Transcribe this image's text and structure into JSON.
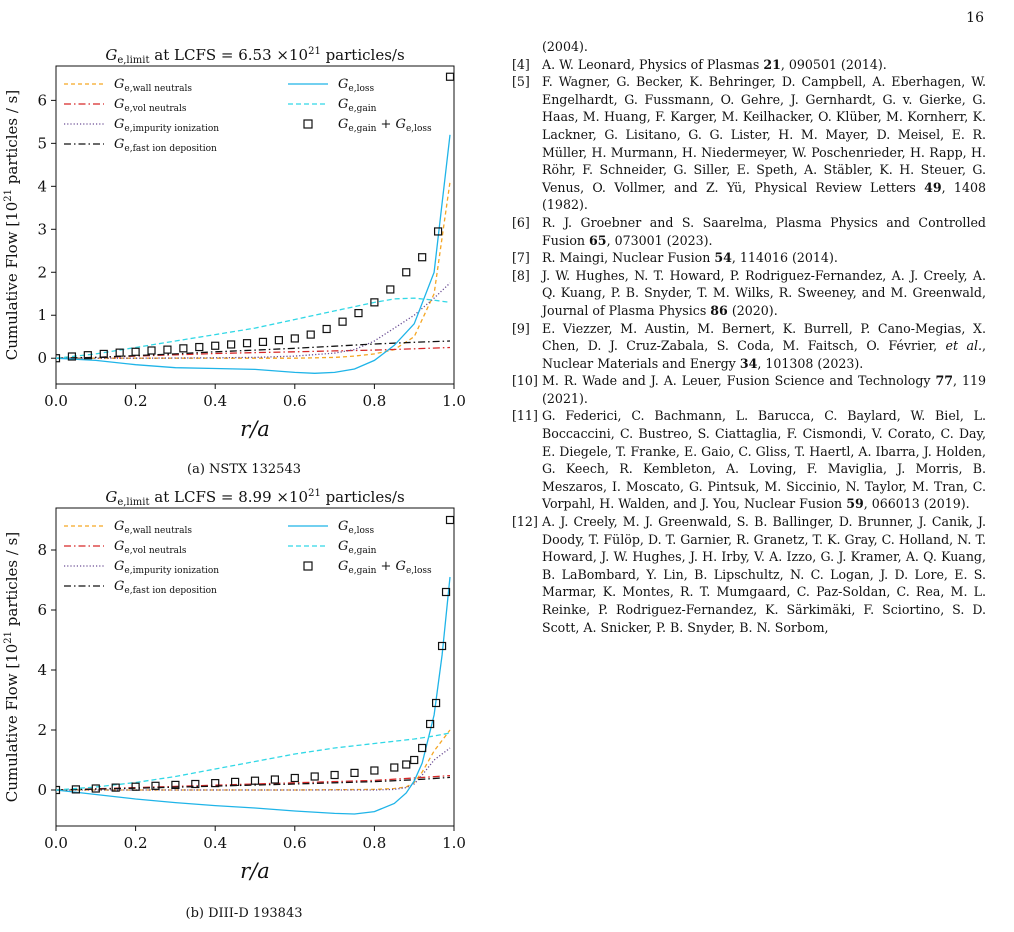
{
  "page": {
    "number": "16"
  },
  "figures": [
    {
      "id": "a",
      "title_prefix": "G",
      "title_sub": "e,limit",
      "title_mid": " at LCFS = 6.53 ×10",
      "title_sup": "21",
      "title_suffix": " particles/s",
      "caption": "(a) NSTX 132543",
      "xlabel": "r/a",
      "ylabel_main": "Cumulative Flow [10",
      "ylabel_sup": "21",
      "ylabel_end": " particles / s]",
      "legend": [
        {
          "sub": "e,wall neutrals",
          "color": "#f5a623",
          "dash": "4,3"
        },
        {
          "sub": "e,vol neutrals",
          "color": "#d62728",
          "dash": "7,3,1.5,3"
        },
        {
          "sub": "e,impurity ionization",
          "color": "#6a4c93",
          "dash": "1.2,2"
        },
        {
          "sub": "e,fast ion deposition",
          "color": "#111111",
          "dash": "7,3,1.5,3"
        },
        {
          "sub": "e,loss",
          "color": "#1fb4e8",
          "dash": ""
        },
        {
          "sub": "e,gain",
          "color": "#32d8e6",
          "dash": "5,3"
        },
        {
          "sub": "e,gain",
          "extra": " + G",
          "extra_sub": "e,loss",
          "color": "#111111",
          "marker": "square"
        }
      ]
    },
    {
      "id": "b",
      "title_prefix": "G",
      "title_sub": "e,limit",
      "title_mid": " at LCFS = 8.99 ×10",
      "title_sup": "21",
      "title_suffix": " particles/s",
      "caption": "(b) DIII-D 193843",
      "xlabel": "r/a",
      "ylabel_main": "Cumulative Flow [10",
      "ylabel_sup": "21",
      "ylabel_end": " particles / s]",
      "legend": [
        {
          "sub": "e,wall neutrals",
          "color": "#f5a623",
          "dash": "4,3"
        },
        {
          "sub": "e,vol neutrals",
          "color": "#d62728",
          "dash": "7,3,1.5,3"
        },
        {
          "sub": "e,impurity ionization",
          "color": "#6a4c93",
          "dash": "1.2,2"
        },
        {
          "sub": "e,fast ion deposition",
          "color": "#111111",
          "dash": "7,3,1.5,3"
        },
        {
          "sub": "e,loss",
          "color": "#1fb4e8",
          "dash": ""
        },
        {
          "sub": "e,gain",
          "color": "#32d8e6",
          "dash": "5,3"
        },
        {
          "sub": "e,gain",
          "extra": " + G",
          "extra_sub": "e,loss",
          "color": "#111111",
          "marker": "square"
        }
      ]
    }
  ],
  "chart_data": [
    {
      "type": "line",
      "xlim": [
        0,
        1.0
      ],
      "ylim": [
        -0.6,
        6.8
      ],
      "xticks": [
        "0.0",
        "0.2",
        "0.4",
        "0.6",
        "0.8",
        "1.0"
      ],
      "yticks": [
        "0",
        "1",
        "2",
        "3",
        "4",
        "5",
        "6"
      ],
      "legend_position": "top",
      "grid": false,
      "series": [
        {
          "x": [
            0,
            0.1,
            0.2,
            0.3,
            0.4,
            0.5,
            0.6,
            0.7,
            0.75,
            0.8,
            0.85,
            0.9,
            0.95,
            0.99
          ],
          "y": [
            0,
            0,
            0,
            0,
            0,
            0,
            0,
            0.02,
            0.05,
            0.1,
            0.2,
            0.5,
            1.5,
            4.1
          ]
        },
        {
          "x": [
            0,
            0.1,
            0.2,
            0.3,
            0.4,
            0.5,
            0.6,
            0.7,
            0.8,
            0.9,
            0.99
          ],
          "y": [
            0,
            0.02,
            0.05,
            0.08,
            0.11,
            0.13,
            0.15,
            0.17,
            0.19,
            0.22,
            0.25
          ]
        },
        {
          "x": [
            0,
            0.2,
            0.4,
            0.5,
            0.6,
            0.7,
            0.75,
            0.8,
            0.85,
            0.9,
            0.95,
            0.99
          ],
          "y": [
            0,
            0,
            0.01,
            0.02,
            0.05,
            0.12,
            0.2,
            0.4,
            0.7,
            1.0,
            1.4,
            1.75
          ]
        },
        {
          "x": [
            0,
            0.1,
            0.2,
            0.3,
            0.4,
            0.5,
            0.6,
            0.7,
            0.8,
            0.9,
            0.99
          ],
          "y": [
            0,
            0.02,
            0.06,
            0.1,
            0.15,
            0.19,
            0.23,
            0.28,
            0.33,
            0.37,
            0.4
          ]
        },
        {
          "x": [
            0,
            0.1,
            0.2,
            0.3,
            0.4,
            0.5,
            0.6,
            0.65,
            0.7,
            0.75,
            0.8,
            0.85,
            0.9,
            0.95,
            0.99
          ],
          "y": [
            0,
            -0.05,
            -0.15,
            -0.22,
            -0.24,
            -0.26,
            -0.33,
            -0.35,
            -0.33,
            -0.25,
            -0.05,
            0.3,
            0.8,
            2.0,
            5.2
          ]
        },
        {
          "x": [
            0,
            0.1,
            0.2,
            0.3,
            0.4,
            0.5,
            0.6,
            0.7,
            0.8,
            0.85,
            0.9,
            0.95,
            0.99
          ],
          "y": [
            0,
            0.1,
            0.25,
            0.4,
            0.55,
            0.7,
            0.9,
            1.1,
            1.3,
            1.38,
            1.4,
            1.35,
            1.3
          ]
        },
        {
          "x": [
            0.0,
            0.04,
            0.08,
            0.12,
            0.16,
            0.2,
            0.24,
            0.28,
            0.32,
            0.36,
            0.4,
            0.44,
            0.48,
            0.52,
            0.56,
            0.6,
            0.64,
            0.68,
            0.72,
            0.76,
            0.8,
            0.84,
            0.88,
            0.92,
            0.96,
            0.99
          ],
          "y": [
            0.0,
            0.04,
            0.07,
            0.1,
            0.13,
            0.15,
            0.18,
            0.2,
            0.23,
            0.26,
            0.29,
            0.32,
            0.35,
            0.38,
            0.42,
            0.46,
            0.55,
            0.68,
            0.85,
            1.05,
            1.3,
            1.6,
            2.0,
            2.35,
            2.95,
            6.55
          ]
        }
      ]
    },
    {
      "type": "line",
      "xlim": [
        0,
        1.0
      ],
      "ylim": [
        -1.2,
        9.4
      ],
      "xticks": [
        "0.0",
        "0.2",
        "0.4",
        "0.6",
        "0.8",
        "1.0"
      ],
      "yticks": [
        "0",
        "2",
        "4",
        "6",
        "8"
      ],
      "legend_position": "top",
      "grid": false,
      "series": [
        {
          "x": [
            0,
            0.2,
            0.4,
            0.6,
            0.8,
            0.85,
            0.88,
            0.9,
            0.92,
            0.95,
            0.99
          ],
          "y": [
            0,
            0,
            0,
            0,
            0.02,
            0.05,
            0.1,
            0.25,
            0.6,
            1.3,
            2.0
          ]
        },
        {
          "x": [
            0,
            0.2,
            0.4,
            0.6,
            0.8,
            0.9,
            0.99
          ],
          "y": [
            0,
            0.08,
            0.16,
            0.24,
            0.32,
            0.4,
            0.48
          ]
        },
        {
          "x": [
            0,
            0.4,
            0.6,
            0.8,
            0.85,
            0.88,
            0.9,
            0.92,
            0.95,
            0.99
          ],
          "y": [
            0,
            0,
            0,
            0,
            0.02,
            0.08,
            0.2,
            0.5,
            1.0,
            1.4
          ]
        },
        {
          "x": [
            0,
            0.2,
            0.4,
            0.6,
            0.8,
            0.9,
            0.99
          ],
          "y": [
            0,
            0.06,
            0.13,
            0.2,
            0.28,
            0.34,
            0.42
          ]
        },
        {
          "x": [
            0,
            0.1,
            0.2,
            0.3,
            0.4,
            0.5,
            0.6,
            0.7,
            0.75,
            0.8,
            0.85,
            0.88,
            0.9,
            0.92,
            0.95,
            0.97,
            0.99
          ],
          "y": [
            0,
            -0.15,
            -0.3,
            -0.42,
            -0.52,
            -0.6,
            -0.7,
            -0.78,
            -0.8,
            -0.72,
            -0.45,
            -0.1,
            0.3,
            0.9,
            2.5,
            4.5,
            7.1
          ]
        },
        {
          "x": [
            0,
            0.1,
            0.2,
            0.3,
            0.4,
            0.5,
            0.6,
            0.7,
            0.8,
            0.9,
            0.95,
            0.99
          ],
          "y": [
            0,
            0.1,
            0.25,
            0.45,
            0.7,
            0.95,
            1.2,
            1.4,
            1.55,
            1.7,
            1.8,
            1.9
          ]
        },
        {
          "x": [
            0.0,
            0.05,
            0.1,
            0.15,
            0.2,
            0.25,
            0.3,
            0.35,
            0.4,
            0.45,
            0.5,
            0.55,
            0.6,
            0.65,
            0.7,
            0.75,
            0.8,
            0.85,
            0.88,
            0.9,
            0.92,
            0.94,
            0.955,
            0.97,
            0.98,
            0.99
          ],
          "y": [
            0.0,
            0.02,
            0.05,
            0.08,
            0.11,
            0.14,
            0.17,
            0.2,
            0.23,
            0.27,
            0.31,
            0.35,
            0.4,
            0.45,
            0.5,
            0.57,
            0.65,
            0.75,
            0.85,
            1.0,
            1.4,
            2.2,
            2.9,
            4.8,
            6.6,
            9.0
          ]
        }
      ]
    }
  ],
  "references": [
    {
      "num": "",
      "text": "(2004)."
    },
    {
      "num": "[4]",
      "text": "A. W. Leonard, Physics of Plasmas ",
      "vol": "21",
      "tail": ", 090501 (2014)."
    },
    {
      "num": "[5]",
      "text": "F. Wagner, G. Becker, K. Behringer, D. Campbell, A. Eberhagen, W. Engelhardt, G. Fussmann, O. Gehre, J. Gernhardt, G. v. Gierke, G. Haas, M. Huang, F. Karger, M. Keilhacker, O. Klüber, M. Kornherr, K. Lackner, G. Lisitano, G. G. Lister, H. M. Mayer, D. Meisel, E. R. Müller, H. Murmann, H. Niedermeyer, W. Poschenrieder, H. Rapp, H. Röhr, F. Schneider, G. Siller, E. Speth, A. Stäbler, K. H. Steuer, G. Venus, O. Vollmer, and Z. Yü, Physical Review Letters ",
      "vol": "49",
      "tail": ", 1408 (1982)."
    },
    {
      "num": "[6]",
      "text": "R. J. Groebner and S. Saarelma, Plasma Physics and Controlled Fusion ",
      "vol": "65",
      "tail": ", 073001 (2023)."
    },
    {
      "num": "[7]",
      "text": "R. Maingi, Nuclear Fusion ",
      "vol": "54",
      "tail": ", 114016 (2014)."
    },
    {
      "num": "[8]",
      "text": "J. W. Hughes, N. T. Howard, P. Rodriguez-Fernandez, A. J. Creely, A. Q. Kuang, P. B. Snyder, T. M. Wilks, R. Sweeney, and M. Greenwald, Journal of Plasma Physics ",
      "vol": "86",
      "tail": " (2020)."
    },
    {
      "num": "[9]",
      "text": "E. Viezzer, M. Austin, M. Bernert, K. Burrell, P. Cano-Megias, X. Chen, D. J. Cruz-Zabala, S. Coda, M. Faitsch, O. Février, ",
      "ital": "et al.",
      "text2": ", Nuclear Materials and Energy ",
      "vol": "34",
      "tail": ", 101308 (2023)."
    },
    {
      "num": "[10]",
      "text": "M. R. Wade and J. A. Leuer, Fusion Science and Technology ",
      "vol": "77",
      "tail": ", 119 (2021)."
    },
    {
      "num": "[11]",
      "text": "G. Federici, C. Bachmann, L. Barucca, C. Baylard, W. Biel, L. Boccaccini, C. Bustreo, S. Ciattaglia, F. Cismondi, V. Corato, C. Day, E. Diegele, T. Franke, E. Gaio, C. Gliss, T. Haertl, A. Ibarra, J. Holden, G. Keech, R. Kembleton, A. Loving, F. Maviglia, J. Morris, B. Meszaros, I. Moscato, G. Pintsuk, M. Siccinio, N. Taylor, M. Tran, C. Vorpahl, H. Walden, and J. You, Nuclear Fusion ",
      "vol": "59",
      "tail": ", 066013 (2019)."
    },
    {
      "num": "[12]",
      "text": "A. J. Creely, M. J. Greenwald, S. B. Ballinger, D. Brunner, J. Canik, J. Doody, T. Fülöp, D. T. Garnier, R. Granetz, T. K. Gray, C. Holland, N. T. Howard, J. W. Hughes, J. H. Irby, V. A. Izzo, G. J. Kramer, A. Q. Kuang, B. LaBombard, Y. Lin, B. Lipschultz, N. C. Logan, J. D. Lore, E. S. Marmar, K. Montes, R. T. Mumgaard, C. Paz-Soldan, C. Rea, M. L. Reinke, P. Rodriguez-Fernandez, K. Särkimäki, F. Sciortino, S. D. Scott, A. Snicker, P. B. Snyder, B. N. Sorbom,",
      "vol": "",
      "tail": ""
    }
  ]
}
